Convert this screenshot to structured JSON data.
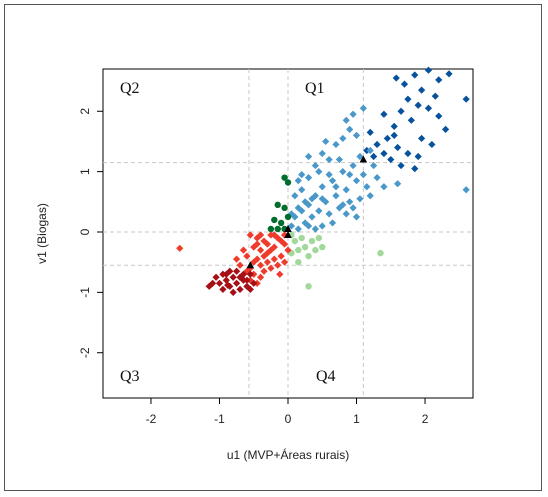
{
  "chart_data": {
    "type": "scatter",
    "title": "",
    "xlabel": "u1 (MVP+Áreas rurais)",
    "ylabel": "v1 (Biogas)",
    "xlim": [
      -2.7,
      2.7
    ],
    "ylim": [
      -2.75,
      2.7
    ],
    "xticks": [
      "-2",
      "-1",
      "0",
      "1",
      "2"
    ],
    "xtick_values": [
      -2,
      -1,
      0,
      1,
      2
    ],
    "yticks": [
      "-2",
      "-1",
      "0",
      "1",
      "2"
    ],
    "ytick_values": [
      -2,
      -1,
      0,
      1,
      2
    ],
    "grid": false,
    "legend": "none",
    "quadrant_labels": [
      "Q1",
      "Q2",
      "Q3",
      "Q4"
    ],
    "reference_lines": {
      "horizontal": [
        0,
        -0.55,
        1.15
      ],
      "vertical": [
        0,
        -0.57,
        1.1
      ]
    },
    "series": [
      {
        "color": "#08519c",
        "marker": "diamond",
        "points": [
          [
            1.58,
            2.55
          ],
          [
            1.7,
            2.45
          ],
          [
            1.85,
            2.6
          ],
          [
            1.95,
            2.35
          ],
          [
            2.05,
            2.68
          ],
          [
            2.2,
            2.52
          ],
          [
            2.35,
            2.62
          ],
          [
            2.6,
            2.2
          ],
          [
            2.15,
            2.25
          ],
          [
            1.75,
            2.2
          ],
          [
            1.9,
            2.1
          ],
          [
            2.05,
            2.05
          ],
          [
            2.2,
            1.92
          ],
          [
            2.3,
            1.7
          ],
          [
            1.65,
            2.0
          ],
          [
            1.8,
            1.85
          ],
          [
            1.95,
            1.55
          ],
          [
            2.1,
            1.45
          ],
          [
            1.4,
            1.95
          ],
          [
            1.55,
            1.75
          ],
          [
            1.45,
            1.55
          ],
          [
            1.3,
            1.45
          ],
          [
            1.6,
            1.4
          ],
          [
            1.75,
            1.3
          ],
          [
            1.9,
            1.25
          ],
          [
            1.5,
            1.2
          ],
          [
            1.25,
            1.25
          ],
          [
            1.15,
            1.35
          ],
          [
            1.4,
            1.3
          ],
          [
            1.65,
            1.1
          ],
          [
            1.85,
            1.05
          ],
          [
            1.2,
            1.65
          ],
          [
            1.55,
            1.6
          ]
        ]
      },
      {
        "color": "#4a98c9",
        "marker": "diamond",
        "points": [
          [
            0.05,
            0.1
          ],
          [
            0.1,
            0.25
          ],
          [
            0.15,
            0.05
          ],
          [
            0.2,
            0.35
          ],
          [
            0.25,
            0.15
          ],
          [
            0.3,
            0.45
          ],
          [
            0.35,
            0.25
          ],
          [
            0.4,
            0.6
          ],
          [
            0.45,
            0.35
          ],
          [
            0.5,
            0.75
          ],
          [
            0.55,
            0.5
          ],
          [
            0.6,
            0.3
          ],
          [
            0.65,
            0.85
          ],
          [
            0.7,
            0.6
          ],
          [
            0.75,
            0.4
          ],
          [
            0.8,
            1.0
          ],
          [
            0.85,
            0.7
          ],
          [
            0.9,
            0.5
          ],
          [
            0.95,
            1.1
          ],
          [
            1.0,
            0.85
          ],
          [
            1.05,
            1.25
          ],
          [
            1.1,
            0.95
          ],
          [
            1.15,
            0.75
          ],
          [
            1.2,
            1.35
          ],
          [
            1.25,
            1.1
          ],
          [
            0.2,
            0.7
          ],
          [
            0.3,
            0.9
          ],
          [
            0.4,
            1.1
          ],
          [
            0.5,
            1.3
          ],
          [
            0.6,
            1.2
          ],
          [
            0.7,
            1.45
          ],
          [
            0.8,
            1.55
          ],
          [
            0.9,
            1.7
          ],
          [
            1.0,
            1.6
          ],
          [
            0.85,
            1.85
          ],
          [
            0.95,
            1.95
          ],
          [
            1.1,
            2.05
          ],
          [
            0.55,
            1.5
          ],
          [
            0.45,
            1.0
          ],
          [
            0.35,
            0.55
          ],
          [
            0.25,
            0.5
          ],
          [
            0.15,
            0.4
          ],
          [
            0.05,
            0.3
          ],
          [
            0.1,
            0.6
          ],
          [
            0.2,
            0.95
          ],
          [
            0.3,
            1.25
          ],
          [
            0.6,
            0.95
          ],
          [
            0.7,
            0.75
          ],
          [
            0.75,
            1.2
          ],
          [
            0.95,
            0.4
          ],
          [
            1.05,
            0.55
          ],
          [
            0.65,
            0.15
          ],
          [
            0.5,
            0.1
          ],
          [
            0.4,
            0.05
          ],
          [
            0.3,
            0.1
          ],
          [
            0.85,
            0.3
          ],
          [
            1.3,
            0.9
          ],
          [
            1.4,
            0.75
          ],
          [
            1.6,
            0.8
          ],
          [
            1.2,
            0.6
          ],
          [
            2.6,
            0.7
          ],
          [
            0.15,
            0.85
          ],
          [
            0.5,
            0.55
          ],
          [
            0.8,
            0.45
          ],
          [
            0.9,
            0.95
          ],
          [
            1.0,
            0.25
          ]
        ]
      },
      {
        "color": "#006d2c",
        "marker": "circle",
        "points": [
          [
            -0.05,
            0.9
          ],
          [
            0.0,
            0.82
          ],
          [
            -0.15,
            0.45
          ],
          [
            -0.05,
            0.4
          ],
          [
            -0.2,
            0.2
          ],
          [
            -0.1,
            0.15
          ],
          [
            -0.05,
            0.05
          ],
          [
            -0.15,
            0.05
          ],
          [
            0.0,
            0.25
          ],
          [
            -0.25,
            0.05
          ]
        ]
      },
      {
        "color": "#a1d99b",
        "marker": "circle",
        "points": [
          [
            0.05,
            -0.05
          ],
          [
            0.1,
            -0.15
          ],
          [
            0.15,
            -0.3
          ],
          [
            0.2,
            -0.1
          ],
          [
            0.25,
            -0.25
          ],
          [
            0.3,
            -0.4
          ],
          [
            0.35,
            -0.15
          ],
          [
            0.4,
            -0.3
          ],
          [
            0.45,
            -0.1
          ],
          [
            0.5,
            -0.25
          ],
          [
            0.15,
            -0.5
          ],
          [
            0.05,
            -0.35
          ],
          [
            1.35,
            -0.35
          ],
          [
            0.3,
            -0.9
          ]
        ]
      },
      {
        "color": "#ef3b2c",
        "marker": "diamond",
        "points": [
          [
            -0.55,
            -0.05
          ],
          [
            -0.45,
            -0.1
          ],
          [
            -0.35,
            -0.15
          ],
          [
            -0.25,
            -0.05
          ],
          [
            -0.15,
            -0.1
          ],
          [
            -0.05,
            -0.2
          ],
          [
            -0.5,
            -0.25
          ],
          [
            -0.4,
            -0.3
          ],
          [
            -0.3,
            -0.35
          ],
          [
            -0.2,
            -0.25
          ],
          [
            -0.1,
            -0.4
          ],
          [
            -0.6,
            -0.4
          ],
          [
            -0.5,
            -0.5
          ],
          [
            -0.4,
            -0.55
          ],
          [
            -0.3,
            -0.5
          ],
          [
            -0.2,
            -0.45
          ],
          [
            -0.7,
            -0.55
          ],
          [
            -0.6,
            -0.65
          ],
          [
            -0.5,
            -0.7
          ],
          [
            -0.4,
            -0.75
          ],
          [
            -0.35,
            -0.65
          ],
          [
            -0.25,
            -0.6
          ],
          [
            -0.15,
            -0.55
          ],
          [
            -0.05,
            -0.5
          ],
          [
            -0.65,
            -0.3
          ],
          [
            -0.45,
            -0.2
          ],
          [
            -0.35,
            -0.4
          ],
          [
            -0.25,
            -0.3
          ],
          [
            -0.55,
            -0.6
          ],
          [
            -0.45,
            -0.45
          ],
          [
            -0.3,
            -0.2
          ],
          [
            -0.1,
            -0.15
          ],
          [
            -0.2,
            -0.05
          ],
          [
            -0.4,
            -0.05
          ],
          [
            -0.55,
            -0.8
          ],
          [
            -0.45,
            -0.85
          ],
          [
            -0.75,
            -0.45
          ],
          [
            -0.05,
            -0.05
          ],
          [
            0.0,
            -0.3
          ],
          [
            -0.12,
            -0.7
          ],
          [
            -0.68,
            -0.75
          ],
          [
            -1.58,
            -0.27
          ]
        ]
      },
      {
        "color": "#a50f15",
        "marker": "diamond",
        "points": [
          [
            -1.05,
            -0.75
          ],
          [
            -1.0,
            -0.85
          ],
          [
            -0.95,
            -0.7
          ],
          [
            -0.9,
            -0.8
          ],
          [
            -0.85,
            -0.9
          ],
          [
            -0.8,
            -0.75
          ],
          [
            -0.75,
            -0.85
          ],
          [
            -0.7,
            -0.95
          ],
          [
            -0.65,
            -0.8
          ],
          [
            -0.6,
            -0.9
          ],
          [
            -0.55,
            -0.95
          ],
          [
            -0.85,
            -0.65
          ],
          [
            -0.75,
            -0.65
          ],
          [
            -0.65,
            -0.7
          ],
          [
            -0.95,
            -0.95
          ],
          [
            -0.9,
            -0.7
          ],
          [
            -1.1,
            -0.85
          ],
          [
            -0.8,
            -1.0
          ],
          [
            -0.7,
            -0.75
          ],
          [
            -0.6,
            -0.8
          ],
          [
            -0.55,
            -0.7
          ],
          [
            -0.5,
            -0.85
          ],
          [
            -1.15,
            -0.9
          ],
          [
            -0.88,
            -0.88
          ]
        ]
      },
      {
        "color": "#000000",
        "marker": "triangle",
        "points": [
          [
            1.1,
            1.2
          ],
          [
            0.0,
            0.05
          ],
          [
            -0.55,
            -0.55
          ],
          [
            0.0,
            -0.05
          ]
        ]
      }
    ]
  }
}
